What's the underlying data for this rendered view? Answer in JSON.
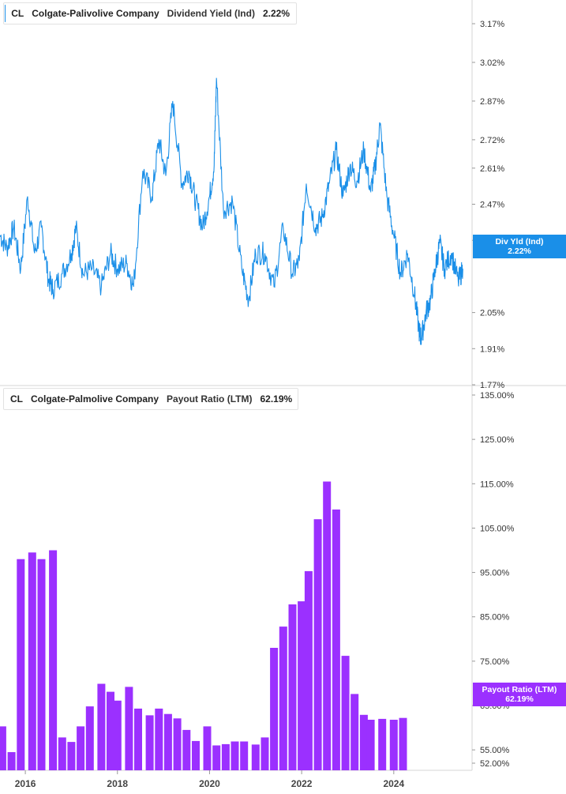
{
  "top_panel": {
    "ticker": "CL",
    "company": "Colgate-Palivolive Company",
    "metric": "Dividend Yield (Ind)",
    "value": "2.22%",
    "tag_label": "Div Yld (Ind)",
    "tag_value": "2.22%",
    "color": "#1a8fe8"
  },
  "bottom_panel": {
    "ticker": "CL",
    "company": "Colgate-Palmolive Company",
    "metric": "Payout Ratio (LTM)",
    "value": "62.19%",
    "tag_label": "Payout Ratio (LTM)",
    "tag_value": "62.19%",
    "color": "#9b30ff"
  },
  "chart_data": [
    {
      "type": "line",
      "name": "Dividend Yield (Ind)",
      "y_ticks": [
        "3.17%",
        "3.02%",
        "2.87%",
        "2.72%",
        "2.61%",
        "2.47%",
        "2.33%",
        "2.05%",
        "1.91%",
        "1.77%"
      ],
      "y_tick_values": [
        3.17,
        3.02,
        2.87,
        2.72,
        2.61,
        2.47,
        2.33,
        2.05,
        1.91,
        1.77
      ],
      "x_ticks": [
        "2016",
        "2018",
        "2020",
        "2022",
        "2024"
      ],
      "x_tick_values": [
        2016,
        2018,
        2020,
        2022,
        2024
      ],
      "xlim": [
        2015.45,
        2025.7
      ],
      "ylim": [
        1.77,
        3.29
      ],
      "x": [
        2015.45,
        2015.6,
        2015.75,
        2015.9,
        2016.05,
        2016.2,
        2016.35,
        2016.5,
        2016.6,
        2016.8,
        2017.0,
        2017.1,
        2017.25,
        2017.45,
        2017.65,
        2017.85,
        2018.0,
        2018.2,
        2018.35,
        2018.55,
        2018.75,
        2018.9,
        2019.05,
        2019.2,
        2019.4,
        2019.55,
        2019.7,
        2019.85,
        2020.0,
        2020.1,
        2020.15,
        2020.3,
        2020.5,
        2020.7,
        2020.85,
        2021.0,
        2021.2,
        2021.4,
        2021.6,
        2021.8,
        2021.95,
        2022.1,
        2022.3,
        2022.45,
        2022.6,
        2022.75,
        2022.9,
        2023.05,
        2023.2,
        2023.35,
        2023.5,
        2023.6,
        2023.7,
        2023.85,
        2024.0,
        2024.15,
        2024.3,
        2024.45,
        2024.55,
        2024.6,
        2024.7,
        2024.8,
        2024.9,
        2025.0,
        2025.1,
        2025.25,
        2025.4,
        2025.5
      ],
      "y": [
        2.35,
        2.3,
        2.38,
        2.22,
        2.5,
        2.28,
        2.38,
        2.18,
        2.14,
        2.2,
        2.28,
        2.38,
        2.2,
        2.22,
        2.15,
        2.28,
        2.22,
        2.24,
        2.15,
        2.6,
        2.5,
        2.72,
        2.58,
        2.87,
        2.55,
        2.6,
        2.48,
        2.38,
        2.5,
        2.62,
        2.96,
        2.45,
        2.48,
        2.22,
        2.1,
        2.28,
        2.28,
        2.15,
        2.38,
        2.2,
        2.25,
        2.55,
        2.38,
        2.42,
        2.55,
        2.68,
        2.5,
        2.62,
        2.56,
        2.68,
        2.52,
        2.62,
        2.78,
        2.5,
        2.35,
        2.2,
        2.28,
        2.12,
        1.98,
        1.95,
        2.05,
        2.1,
        2.22,
        2.32,
        2.22,
        2.28,
        2.17,
        2.22
      ],
      "last_value": 2.22
    },
    {
      "type": "bar",
      "name": "Payout Ratio (LTM)",
      "y_ticks": [
        "135.00%",
        "125.00%",
        "115.00%",
        "105.00%",
        "95.00%",
        "85.00%",
        "75.00%",
        "65.00%",
        "55.00%",
        "52.00%"
      ],
      "y_tick_values": [
        135,
        125,
        115,
        105,
        95,
        85,
        75,
        65,
        55,
        52
      ],
      "x_ticks": [
        "2016",
        "2018",
        "2020",
        "2022",
        "2024"
      ],
      "x_tick_values": [
        2016,
        2018,
        2020,
        2022,
        2024
      ],
      "xlim": [
        2015.45,
        2025.7
      ],
      "ylim": [
        51.3,
        135
      ],
      "x": [
        2015.5,
        2015.7,
        2015.9,
        2016.15,
        2016.35,
        2016.6,
        2016.8,
        2017.0,
        2017.2,
        2017.4,
        2017.65,
        2017.85,
        2018.0,
        2018.25,
        2018.45,
        2018.7,
        2018.9,
        2019.1,
        2019.3,
        2019.5,
        2019.7,
        2019.95,
        2020.15,
        2020.35,
        2020.55,
        2020.75,
        2021.0,
        2021.2,
        2021.4,
        2021.6,
        2021.8,
        2022.0,
        2022.15,
        2022.35,
        2022.55,
        2022.75,
        2022.95,
        2023.15,
        2023.35,
        2023.5,
        2023.75,
        2024.0,
        2024.2,
        2024.45,
        2024.65,
        2024.85,
        2025.05
      ],
      "values": [
        60.3,
        54.5,
        98.0,
        99.5,
        98.0,
        100.0,
        57.8,
        56.8,
        60.3,
        64.8,
        69.9,
        68.1,
        66.1,
        69.2,
        64.3,
        62.8,
        64.3,
        63.1,
        62.1,
        59.5,
        57.0,
        60.3,
        56.0,
        56.3,
        56.9,
        56.9,
        56.2,
        57.8,
        78.0,
        82.8,
        87.8,
        88.5,
        95.3,
        107.0,
        115.5,
        109.2,
        76.2,
        67.6,
        62.9,
        61.8,
        62.0,
        61.8,
        62.2,
        null,
        null,
        null,
        null
      ],
      "last_value": 62.19
    }
  ]
}
